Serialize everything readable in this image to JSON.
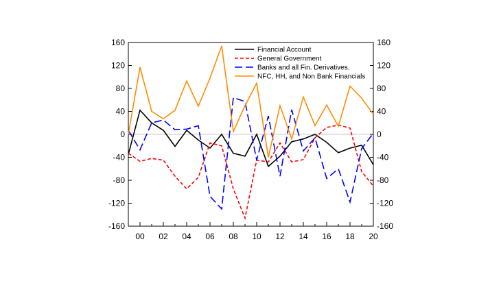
{
  "chart_data": {
    "type": "line",
    "x": [
      1999,
      2000,
      2001,
      2002,
      2003,
      2004,
      2005,
      2006,
      2007,
      2008,
      2009,
      2010,
      2011,
      2012,
      2013,
      2014,
      2015,
      2016,
      2017,
      2018,
      2019,
      2020
    ],
    "x_tick_labels": [
      "00",
      "02",
      "04",
      "06",
      "08",
      "10",
      "12",
      "14",
      "16",
      "18",
      "20"
    ],
    "x_tick_values": [
      2000,
      2002,
      2004,
      2006,
      2008,
      2010,
      2012,
      2014,
      2016,
      2018,
      2020
    ],
    "ylim": [
      -160,
      160
    ],
    "y_ticks": [
      160,
      120,
      80,
      40,
      0,
      -40,
      -80,
      -120,
      -160
    ],
    "y_tick_labels": [
      "160",
      "120",
      "80",
      "40",
      "0",
      "-40",
      "-80",
      "-120",
      "-160"
    ],
    "legend_position": "top-right",
    "series": [
      {
        "name": "Financial Account",
        "color": "#000000",
        "dash": "solid",
        "values": [
          -35,
          42,
          20,
          7,
          -21,
          7,
          -10,
          -24,
          0,
          -33,
          -38,
          0,
          -56,
          -38,
          -13,
          -8,
          0,
          -14,
          -32,
          -24,
          -19,
          -53
        ]
      },
      {
        "name": "General Government",
        "color": "#ff0000",
        "dash": "short",
        "values": [
          -33,
          -47,
          -42,
          -45,
          -73,
          -95,
          -75,
          -15,
          -20,
          -95,
          -146,
          -45,
          -48,
          -15,
          -48,
          -44,
          -6,
          12,
          16,
          11,
          -65,
          -90
        ]
      },
      {
        "name": "Banks and all Fin. Derivatives.",
        "color": "#0000ff",
        "dash": "long",
        "values": [
          7,
          -27,
          20,
          25,
          8,
          9,
          15,
          -108,
          -130,
          64,
          57,
          -45,
          32,
          -73,
          43,
          -29,
          -6,
          -77,
          -60,
          -118,
          -25,
          2
        ]
      },
      {
        "name": "NFC, HH, and Non Bank Financials",
        "color": "#ff8c00",
        "dash": "solid",
        "values": [
          0,
          117,
          40,
          27,
          42,
          93,
          49,
          98,
          154,
          5,
          50,
          89,
          -40,
          50,
          -8,
          65,
          15,
          51,
          14,
          84,
          63,
          35
        ]
      }
    ]
  }
}
